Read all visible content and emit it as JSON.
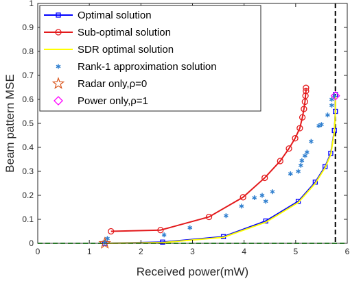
{
  "chart_data": {
    "type": "line",
    "title": "",
    "xlabel": "Received power(mW)",
    "ylabel": "Beam pattern MSE",
    "xlim": [
      0,
      6
    ],
    "ylim": [
      0,
      1
    ],
    "xticks": [
      "0",
      "1",
      "2",
      "3",
      "4",
      "5",
      "6"
    ],
    "yticks": [
      "0",
      "0.1",
      "0.2",
      "0.3",
      "0.4",
      "0.5",
      "0.6",
      "0.7",
      "0.8",
      "0.9",
      "1"
    ],
    "grid": false,
    "legend_position": "top-left",
    "vline": {
      "x": 5.77,
      "color": "#000000",
      "style": "dashed"
    },
    "hline": {
      "y": 0,
      "color": "#33cc33",
      "style": "dashed"
    },
    "series": [
      {
        "name": "Optimal solution",
        "kind": "line",
        "marker": "square",
        "color": "#0000ff",
        "points": [
          [
            1.3,
            0
          ],
          [
            2.42,
            0.005
          ],
          [
            3.6,
            0.028
          ],
          [
            4.42,
            0.093
          ],
          [
            5.05,
            0.175
          ],
          [
            5.38,
            0.255
          ],
          [
            5.57,
            0.32
          ],
          [
            5.68,
            0.375
          ],
          [
            5.75,
            0.47
          ],
          [
            5.77,
            0.55
          ],
          [
            5.77,
            0.62
          ]
        ]
      },
      {
        "name": "Sub-optimal solution",
        "kind": "line",
        "marker": "circle",
        "color": "#e31a1c",
        "points": [
          [
            1.42,
            0.05
          ],
          [
            2.38,
            0.055
          ],
          [
            3.32,
            0.11
          ],
          [
            3.98,
            0.192
          ],
          [
            4.4,
            0.273
          ],
          [
            4.7,
            0.343
          ],
          [
            4.87,
            0.395
          ],
          [
            4.99,
            0.438
          ],
          [
            5.08,
            0.48
          ],
          [
            5.13,
            0.525
          ],
          [
            5.16,
            0.56
          ],
          [
            5.18,
            0.59
          ],
          [
            5.19,
            0.615
          ],
          [
            5.2,
            0.635
          ],
          [
            5.2,
            0.648
          ]
        ]
      },
      {
        "name": "SDR optimal solution",
        "kind": "line",
        "marker": "none",
        "color": "#ffff00",
        "points": [
          [
            1.3,
            0
          ],
          [
            2.42,
            0.003
          ],
          [
            3.6,
            0.025
          ],
          [
            4.42,
            0.088
          ],
          [
            5.05,
            0.17
          ],
          [
            5.38,
            0.25
          ],
          [
            5.57,
            0.315
          ],
          [
            5.68,
            0.37
          ],
          [
            5.75,
            0.465
          ],
          [
            5.77,
            0.545
          ],
          [
            5.77,
            0.615
          ]
        ]
      },
      {
        "name": "Rank-1 approximation solution",
        "kind": "scatter",
        "marker": "asterisk",
        "color": "#2f7fcf",
        "points": [
          [
            1.3,
            0.005
          ],
          [
            1.35,
            0.02
          ],
          [
            2.45,
            0.035
          ],
          [
            2.95,
            0.065
          ],
          [
            3.65,
            0.115
          ],
          [
            3.95,
            0.155
          ],
          [
            4.2,
            0.19
          ],
          [
            4.35,
            0.2
          ],
          [
            4.42,
            0.175
          ],
          [
            4.55,
            0.215
          ],
          [
            4.9,
            0.29
          ],
          [
            5.05,
            0.3
          ],
          [
            5.1,
            0.325
          ],
          [
            5.12,
            0.345
          ],
          [
            5.18,
            0.365
          ],
          [
            5.22,
            0.38
          ],
          [
            5.3,
            0.425
          ],
          [
            5.45,
            0.49
          ],
          [
            5.5,
            0.495
          ],
          [
            5.62,
            0.535
          ],
          [
            5.7,
            0.575
          ],
          [
            5.7,
            0.6
          ],
          [
            5.75,
            0.615
          ]
        ]
      },
      {
        "name": "Radar only,ρ=0",
        "kind": "scatter",
        "marker": "star",
        "color": "#d95319",
        "points": [
          [
            1.3,
            0
          ]
        ]
      },
      {
        "name": "Power only,ρ=1",
        "kind": "scatter",
        "marker": "diamond",
        "color": "#ff00ff",
        "points": [
          [
            5.77,
            0.615
          ]
        ]
      }
    ]
  }
}
